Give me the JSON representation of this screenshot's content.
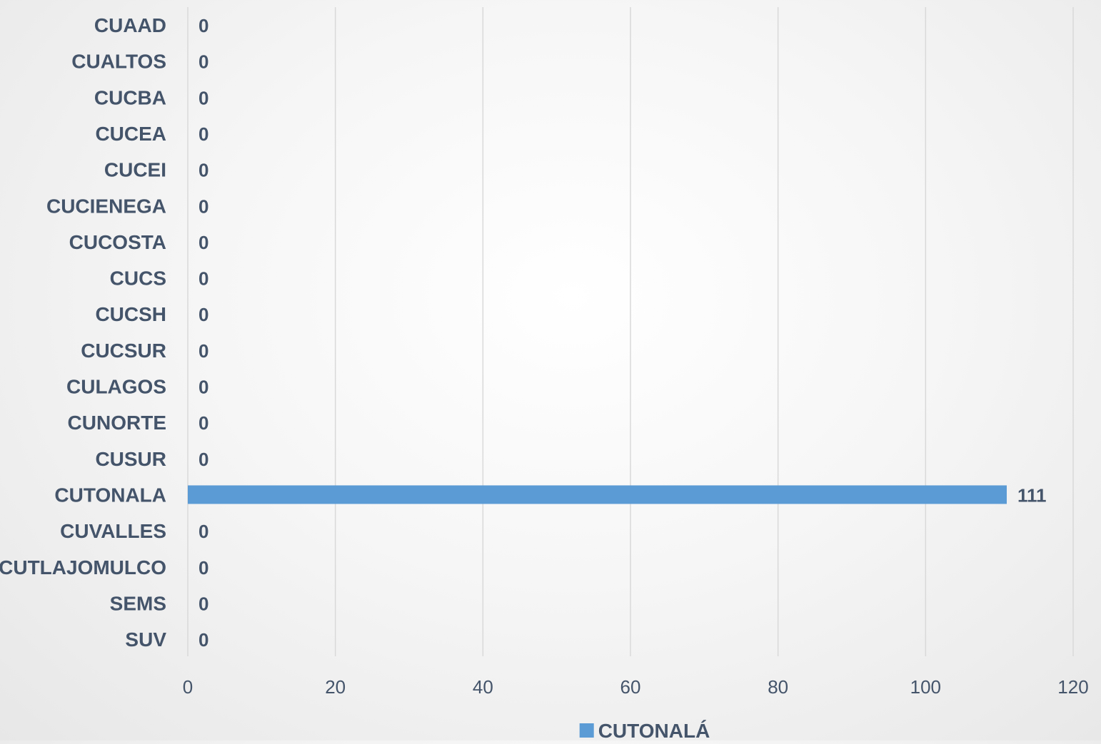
{
  "chart_data": {
    "type": "bar",
    "orientation": "horizontal",
    "categories": [
      "CUAAD",
      "CUALTOS",
      "CUCBA",
      "CUCEA",
      "CUCEI",
      "CUCIENEGA",
      "CUCOSTA",
      "CUCS",
      "CUCSH",
      "CUCSUR",
      "CULAGOS",
      "CUNORTE",
      "CUSUR",
      "CUTONALA",
      "CUVALLES",
      "CUTLAJOMULCO",
      "SEMS",
      "SUV"
    ],
    "series": [
      {
        "name": "CUTONALÁ",
        "color": "#5b9bd5",
        "values": [
          0,
          0,
          0,
          0,
          0,
          0,
          0,
          0,
          0,
          0,
          0,
          0,
          0,
          111,
          0,
          0,
          0,
          0
        ]
      }
    ],
    "xlim": [
      0,
      120
    ],
    "xticks": [
      0,
      20,
      40,
      60,
      80,
      100,
      120
    ],
    "grid": true,
    "legend_position": "bottom",
    "data_labels": true
  }
}
